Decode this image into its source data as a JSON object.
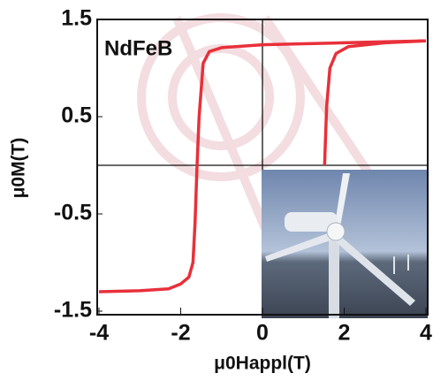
{
  "chart_data": {
    "type": "line",
    "annotation": "NdFeB",
    "x_label": "μ0Happl(T)",
    "y_label": "μ0M(T)",
    "x": [
      4,
      3,
      2,
      1,
      0,
      -1,
      -1.3,
      -1.45,
      -1.55,
      -1.6,
      -1.65,
      -1.7,
      -1.8,
      -2.0,
      -2.3,
      -3,
      -4,
      null,
      1.52,
      1.57,
      1.65,
      1.8,
      2.1,
      3,
      4
    ],
    "values": [
      1.28,
      1.27,
      1.26,
      1.25,
      1.24,
      1.21,
      1.17,
      1.05,
      0.5,
      0,
      -0.6,
      -1.0,
      -1.15,
      -1.22,
      -1.27,
      -1.29,
      -1.3,
      null,
      0,
      0.6,
      1.0,
      1.15,
      1.22,
      1.26,
      1.28
    ],
    "color": "#e8303a",
    "xlim": [
      -4,
      4
    ],
    "ylim": [
      -1.5,
      1.5
    ],
    "xticks": [
      -4,
      -2,
      0,
      2,
      4
    ],
    "yticks": [
      -1.5,
      -0.5,
      0.5,
      1.5
    ],
    "zero_lines": true
  }
}
